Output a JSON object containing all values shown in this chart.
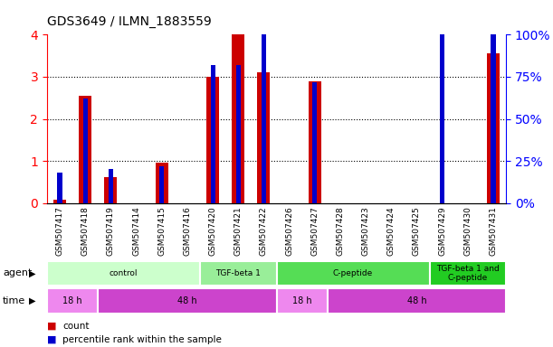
{
  "title": "GDS3649 / ILMN_1883559",
  "samples": [
    "GSM507417",
    "GSM507418",
    "GSM507419",
    "GSM507414",
    "GSM507415",
    "GSM507416",
    "GSM507420",
    "GSM507421",
    "GSM507422",
    "GSM507426",
    "GSM507427",
    "GSM507428",
    "GSM507423",
    "GSM507424",
    "GSM507425",
    "GSM507429",
    "GSM507430",
    "GSM507431"
  ],
  "counts": [
    0.08,
    2.55,
    0.62,
    0.0,
    0.95,
    0.0,
    3.0,
    4.0,
    3.1,
    0.0,
    2.9,
    0.0,
    0.0,
    0.0,
    0.0,
    0.0,
    0.0,
    3.55
  ],
  "percentile_ranks_pct": [
    18,
    62,
    20,
    0,
    22,
    0,
    82,
    82,
    100,
    0,
    72,
    0,
    0,
    0,
    0,
    100,
    0,
    100
  ],
  "ylim_left": [
    0,
    4
  ],
  "ylim_right": [
    0,
    100
  ],
  "yticks_left": [
    0,
    1,
    2,
    3,
    4
  ],
  "yticks_right": [
    0,
    25,
    50,
    75,
    100
  ],
  "bar_color_red": "#cc0000",
  "bar_color_blue": "#0000cc",
  "agent_groups": [
    {
      "label": "control",
      "start": 0,
      "end": 5,
      "color": "#ccffcc"
    },
    {
      "label": "TGF-beta 1",
      "start": 6,
      "end": 8,
      "color": "#99ee99"
    },
    {
      "label": "C-peptide",
      "start": 9,
      "end": 14,
      "color": "#55dd55"
    },
    {
      "label": "TGF-beta 1 and\nC-peptide",
      "start": 15,
      "end": 17,
      "color": "#22cc22"
    }
  ],
  "time_groups": [
    {
      "label": "18 h",
      "start": 0,
      "end": 1,
      "color": "#ee88ee"
    },
    {
      "label": "48 h",
      "start": 2,
      "end": 8,
      "color": "#cc44cc"
    },
    {
      "label": "18 h",
      "start": 9,
      "end": 10,
      "color": "#ee88ee"
    },
    {
      "label": "48 h",
      "start": 11,
      "end": 17,
      "color": "#cc44cc"
    }
  ],
  "legend_count_color": "#cc0000",
  "legend_pct_color": "#0000cc",
  "tick_area_bg": "#cccccc"
}
